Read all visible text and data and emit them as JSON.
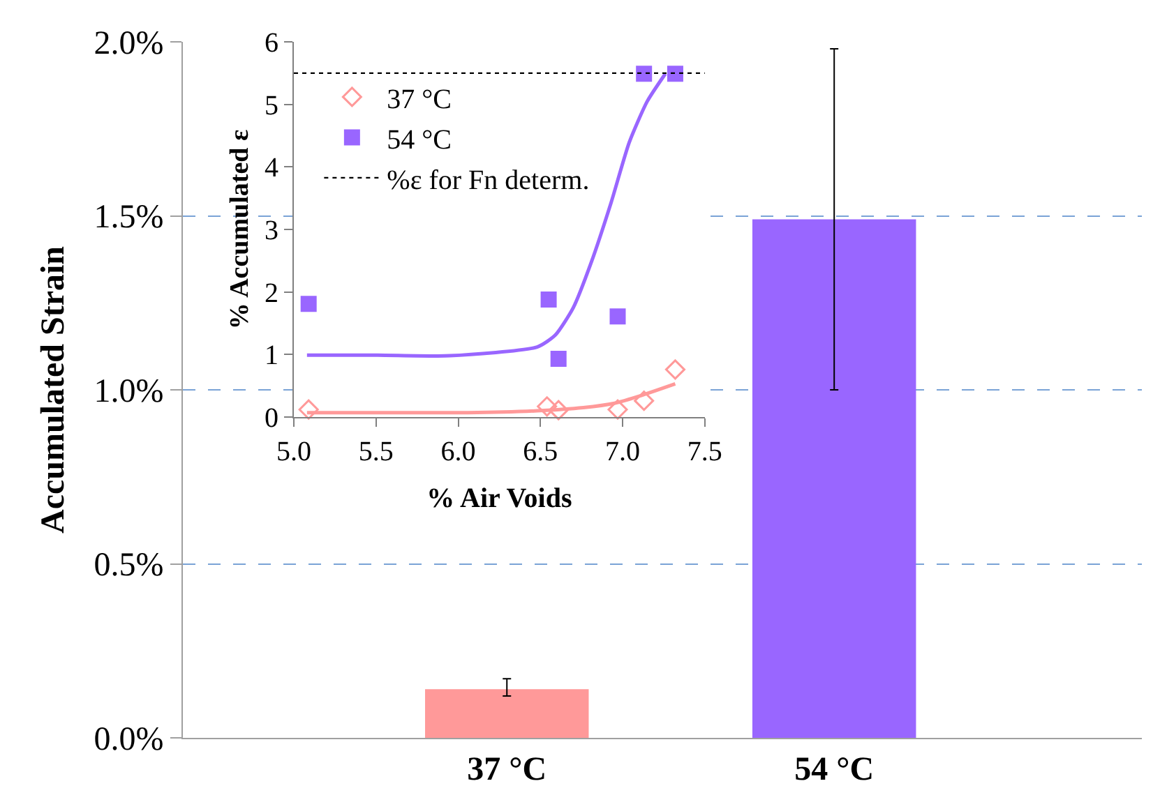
{
  "chart_data": [
    {
      "type": "bar",
      "ylabel": "Accumulated Strain",
      "categories": [
        "37 °C",
        "54 °C"
      ],
      "values": [
        0.14,
        1.49
      ],
      "colors": [
        "#ff9999",
        "#9966ff"
      ],
      "errors": [
        [
          0.12,
          0.17
        ],
        [
          1.0,
          1.98
        ]
      ],
      "ylim": [
        0,
        2.0
      ],
      "yticks": [
        {
          "value": 0,
          "label": "0.0%"
        },
        {
          "value": 0.5,
          "label": "0.5%"
        },
        {
          "value": 1.0,
          "label": "1.0%"
        },
        {
          "value": 1.5,
          "label": "1.5%"
        },
        {
          "value": 2.0,
          "label": "2.0%"
        }
      ],
      "grid": "y"
    },
    {
      "type": "scatter",
      "xlabel": "% Air Voids",
      "ylabel": "% Accumulated ε",
      "legend": "top left",
      "xlim": [
        5.0,
        7.5
      ],
      "xticks": [
        {
          "value": 5.0,
          "label": "5.0"
        },
        {
          "value": 5.5,
          "label": "5.5"
        },
        {
          "value": 6.0,
          "label": "6.0"
        },
        {
          "value": 6.5,
          "label": "6.5"
        },
        {
          "value": 7.0,
          "label": "7.0"
        },
        {
          "value": 7.5,
          "label": "7.5"
        }
      ],
      "ylim": [
        0,
        6
      ],
      "yticks": [
        0,
        1,
        2,
        3,
        4,
        5,
        6
      ],
      "series": [
        {
          "name": "37 °C",
          "type": "scatter",
          "marker": "diamond",
          "color": "#ff9999",
          "x": [
            5.09,
            6.54,
            6.61,
            6.97,
            7.13,
            7.32
          ],
          "values": [
            0.12,
            0.17,
            0.11,
            0.12,
            0.26,
            0.76
          ]
        },
        {
          "name": "54 °C",
          "type": "scatter",
          "marker": "square",
          "color": "#9966ff",
          "x": [
            5.09,
            6.55,
            6.61,
            6.97,
            7.13,
            7.32
          ],
          "values": [
            1.81,
            1.88,
            0.93,
            1.61,
            5.49,
            5.49
          ]
        },
        {
          "type": "line",
          "color": "#9966ff",
          "x": [
            5.08,
            5.51,
            5.95,
            6.48,
            6.59,
            6.7,
            6.81,
            6.93,
            7.04,
            7.15,
            7.26
          ],
          "values": [
            0.99,
            0.99,
            0.98,
            1.12,
            1.31,
            1.75,
            2.48,
            3.43,
            4.39,
            5.05,
            5.49
          ]
        },
        {
          "type": "line",
          "color": "#ff9999",
          "x": [
            5.08,
            6.06,
            6.48,
            6.76,
            6.95,
            7.12,
            7.32
          ],
          "values": [
            0.07,
            0.07,
            0.1,
            0.15,
            0.22,
            0.35,
            0.53
          ]
        }
      ],
      "ref_lines": [
        {
          "axis": "y",
          "value": 5.5,
          "label": "%ε for Fn determ.",
          "color": "#000000",
          "line_style": "dotted"
        }
      ]
    }
  ]
}
